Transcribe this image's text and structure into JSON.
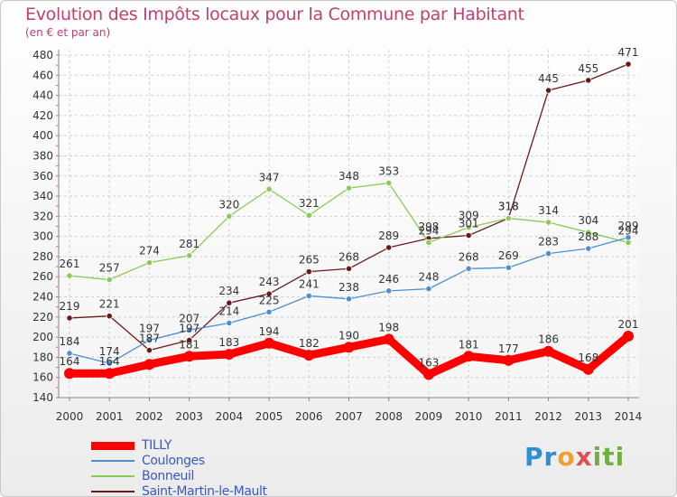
{
  "title": "Evolution des Impôts locaux pour la Commune par Habitant",
  "subtitle": "(en € et par an)",
  "logo": {
    "parts": [
      "Pr",
      "o",
      "x",
      "iti"
    ],
    "colors": [
      "#2f8fd0",
      "#f0a030",
      "#e05050",
      "#70b040"
    ]
  },
  "chart_data": {
    "type": "line",
    "x": [
      "2000",
      "2001",
      "2002",
      "2003",
      "2004",
      "2005",
      "2006",
      "2007",
      "2008",
      "2009",
      "2010",
      "2011",
      "2012",
      "2013",
      "2014"
    ],
    "ylim": [
      140,
      480
    ],
    "yticks": [
      140,
      160,
      180,
      200,
      220,
      240,
      260,
      280,
      300,
      320,
      340,
      360,
      380,
      400,
      420,
      440,
      460,
      480
    ],
    "grid": true,
    "legend_position": "bottom-left",
    "series": [
      {
        "name": "TILLY",
        "color": "#ff0000",
        "values": [
          164,
          164,
          173,
          181,
          183,
          194,
          182,
          190,
          198,
          163,
          181,
          177,
          186,
          168,
          201
        ],
        "labels": [
          "164",
          "164",
          "",
          "181",
          "183",
          "194",
          "182",
          "190",
          "198",
          "163",
          "181",
          "177",
          "186",
          "168",
          "201"
        ]
      },
      {
        "name": "Coulonges",
        "color": "#4d8fd0",
        "values": [
          184,
          174,
          197,
          207,
          214,
          225,
          241,
          238,
          246,
          248,
          268,
          269,
          283,
          288,
          299
        ],
        "labels": [
          "184",
          "174",
          "197",
          "207",
          "214",
          "225",
          "241",
          "238",
          "246",
          "248",
          "268",
          "269",
          "283",
          "288",
          "299"
        ]
      },
      {
        "name": "Bonneuil",
        "color": "#88cc55",
        "values": [
          261,
          257,
          274,
          281,
          320,
          347,
          321,
          348,
          353,
          294,
          309,
          318,
          314,
          304,
          294
        ],
        "labels": [
          "261",
          "257",
          "274",
          "281",
          "320",
          "347",
          "321",
          "348",
          "353",
          "294",
          "309",
          "318",
          "314",
          "304",
          "294"
        ]
      },
      {
        "name": "Saint-Martin-le-Mault",
        "color": "#6b1a1a",
        "values": [
          219,
          221,
          187,
          197,
          234,
          243,
          265,
          268,
          289,
          298,
          301,
          318,
          445,
          455,
          471
        ],
        "labels": [
          "219",
          "221",
          "187",
          "197",
          "234",
          "243",
          "265",
          "268",
          "289",
          "298",
          "301",
          "318",
          "445",
          "455",
          "471"
        ]
      }
    ]
  }
}
